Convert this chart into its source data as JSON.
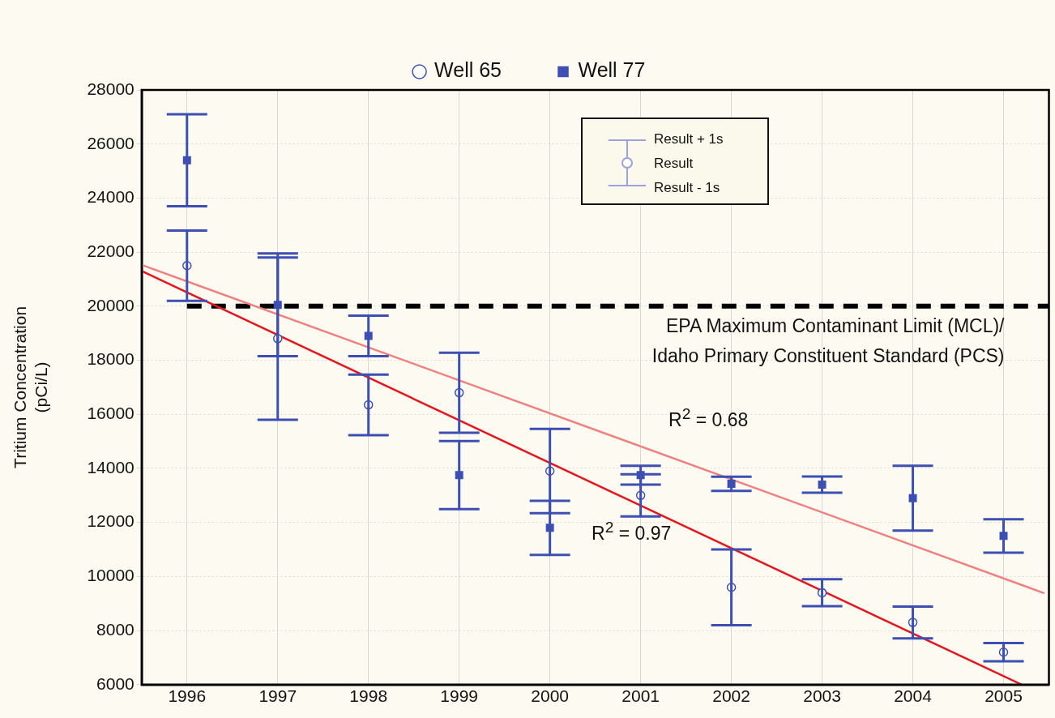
{
  "chart_data": {
    "type": "scatter",
    "ylabel": "Tritium Concentration\n(pCi/L)",
    "x": [
      1996,
      1997,
      1998,
      1999,
      2000,
      2001,
      2002,
      2003,
      2004,
      2005
    ],
    "xlim": [
      1995.5,
      2005.5
    ],
    "xticks": [
      1996,
      1997,
      1998,
      1999,
      2000,
      2001,
      2002,
      2003,
      2004,
      2005
    ],
    "ylim": [
      6000,
      28000
    ],
    "yticks": [
      6000,
      8000,
      10000,
      12000,
      14000,
      16000,
      18000,
      20000,
      22000,
      24000,
      26000,
      28000
    ],
    "grid": true,
    "legend": "top",
    "series": [
      {
        "name": "Well 65",
        "color": "#3d4fb3",
        "marker": "circle",
        "values": [
          21500,
          18800,
          16350,
          16800,
          13900,
          13000,
          9600,
          9400,
          8300,
          7200
        ],
        "errors": [
          1300,
          3000,
          1120,
          1480,
          1560,
          780,
          1400,
          500,
          590,
          340
        ]
      },
      {
        "name": "Well 77",
        "color": "#3d4fb3",
        "marker": "square",
        "values": [
          25400,
          20050,
          18900,
          13750,
          11800,
          13750,
          13430,
          13400,
          12900,
          11500
        ],
        "errors": [
          1700,
          1900,
          750,
          1260,
          1000,
          350,
          260,
          300,
          1200,
          620
        ]
      },
      {
        "type": "line",
        "color": "#e8141c",
        "x": [
          1995.5,
          2005.2
        ],
        "values": [
          21300,
          6000
        ]
      },
      {
        "type": "line",
        "color": "#f08080",
        "x": [
          1995.5,
          2005.45
        ],
        "values": [
          21530,
          9380
        ]
      }
    ],
    "ref_lines": [
      {
        "axis": "y",
        "value": 20000,
        "label": "EPA Maximum Contaminant Limit (MCL)/\nIdaho Primary Constituent Standard (PCS)",
        "color": "#000000",
        "line_style": "dashed"
      }
    ],
    "annotations": [
      "Result + 1s",
      "Result",
      "Result - 1s",
      "R$^{2}$ = 0.68",
      "R$^{2}$ = 0.97"
    ]
  }
}
